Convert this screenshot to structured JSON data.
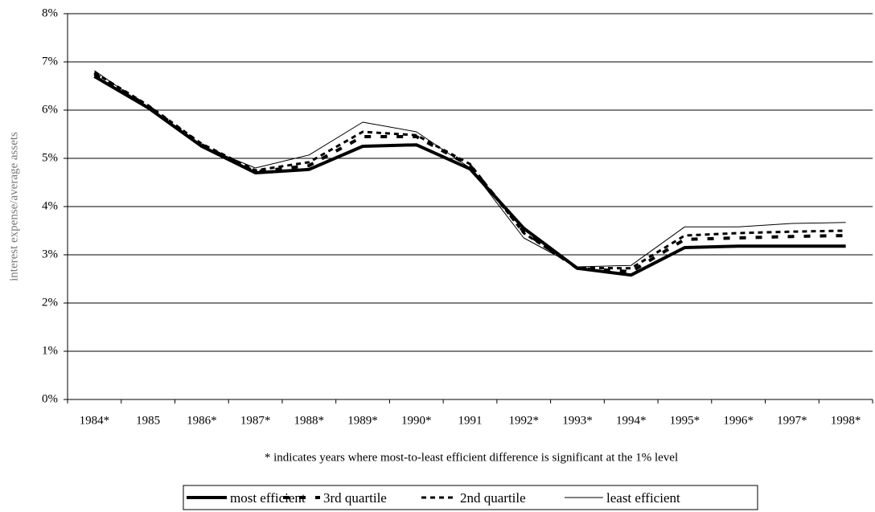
{
  "chart_data": {
    "type": "line",
    "y_label": "interest expense/average assets",
    "footnote": "* indicates years where most-to-least efficient difference is significant at the 1% level",
    "categories": [
      "1984*",
      "1985",
      "1986*",
      "1987*",
      "1988*",
      "1989*",
      "1990*",
      "1991",
      "1992*",
      "1993*",
      "1994*",
      "1995*",
      "1996*",
      "1997*",
      "1998*"
    ],
    "series": [
      {
        "name": "most efficient",
        "color": "#000000",
        "line_style": "thick",
        "values": [
          6.7,
          6.05,
          5.25,
          4.7,
          4.77,
          5.25,
          5.28,
          4.78,
          3.55,
          2.72,
          2.58,
          3.15,
          3.18,
          3.18,
          3.18
        ]
      },
      {
        "name": "3rd quartile",
        "color": "#000000",
        "line_style": "dashed",
        "values": [
          6.75,
          6.08,
          5.28,
          4.72,
          4.85,
          5.45,
          5.45,
          4.85,
          3.48,
          2.72,
          2.65,
          3.32,
          3.35,
          3.38,
          3.4
        ]
      },
      {
        "name": "2nd quartile",
        "color": "#000000",
        "line_style": "dotted",
        "values": [
          6.78,
          6.1,
          5.3,
          4.75,
          4.92,
          5.55,
          5.48,
          4.88,
          3.45,
          2.73,
          2.72,
          3.4,
          3.45,
          3.48,
          3.5
        ]
      },
      {
        "name": "least efficient",
        "color": "#000000",
        "line_style": "thin",
        "values": [
          6.82,
          6.05,
          5.25,
          4.8,
          5.07,
          5.75,
          5.55,
          4.8,
          3.35,
          2.75,
          2.78,
          3.58,
          3.58,
          3.65,
          3.67
        ]
      }
    ],
    "ylim": [
      0,
      8
    ],
    "yticks": [
      {
        "value": 0,
        "label": "0%"
      },
      {
        "value": 1,
        "label": "1%"
      },
      {
        "value": 2,
        "label": "2%"
      },
      {
        "value": 3,
        "label": "3%"
      },
      {
        "value": 4,
        "label": "4%"
      },
      {
        "value": 5,
        "label": "5%"
      },
      {
        "value": 6,
        "label": "6%"
      },
      {
        "value": 7,
        "label": "7%"
      },
      {
        "value": 8,
        "label": "8%"
      }
    ],
    "grid": true
  }
}
